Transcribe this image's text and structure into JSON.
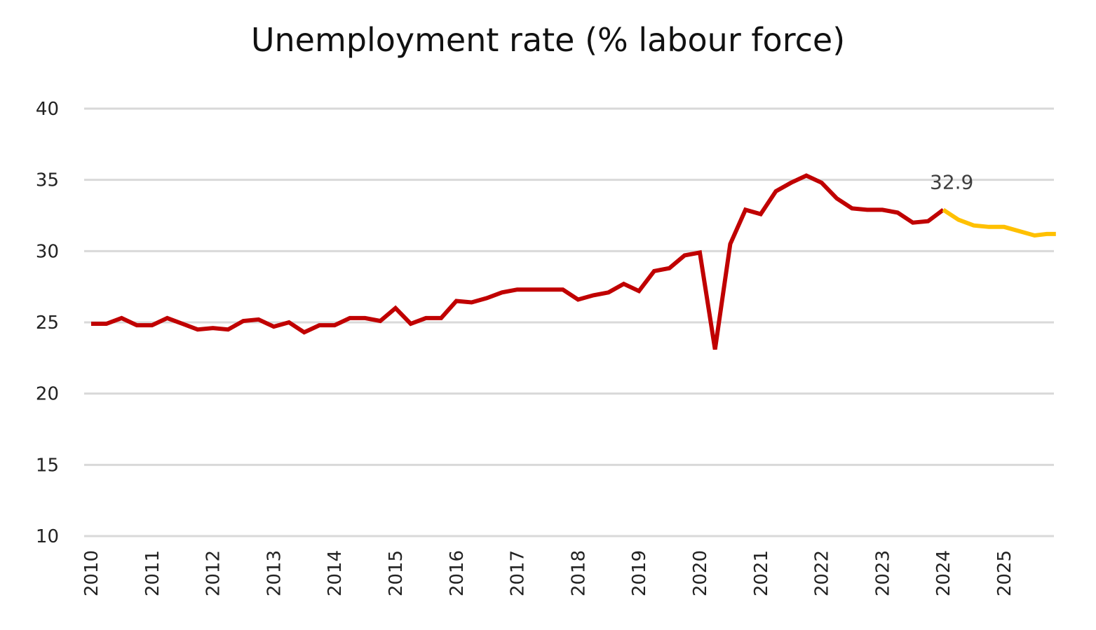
{
  "chart_data": {
    "type": "line",
    "title": "Unemployment rate (% labour force)",
    "xlabel": "",
    "ylabel": "",
    "ylim": [
      10,
      40
    ],
    "xlim": [
      2010,
      2025.85
    ],
    "yticks": [
      "10",
      "15",
      "20",
      "25",
      "30",
      "35",
      "40"
    ],
    "xticks": [
      "2010",
      "2011",
      "2012",
      "2013",
      "2014",
      "2015",
      "2016",
      "2017",
      "2018",
      "2019",
      "2020",
      "2021",
      "2022",
      "2023",
      "2024",
      "2025"
    ],
    "grid": true,
    "colors": {
      "actual": "#c00000",
      "forecast": "#ffc000",
      "grid": "#d9d9d9"
    },
    "series": [
      {
        "key": "actual",
        "points": [
          [
            2010.0,
            24.9
          ],
          [
            2010.25,
            24.9
          ],
          [
            2010.5,
            25.3
          ],
          [
            2010.75,
            24.8
          ],
          [
            2011.0,
            24.8
          ],
          [
            2011.25,
            25.3
          ],
          [
            2011.5,
            24.9
          ],
          [
            2011.75,
            24.5
          ],
          [
            2012.0,
            24.6
          ],
          [
            2012.25,
            24.5
          ],
          [
            2012.5,
            25.1
          ],
          [
            2012.75,
            25.2
          ],
          [
            2013.0,
            24.7
          ],
          [
            2013.25,
            25.0
          ],
          [
            2013.5,
            24.3
          ],
          [
            2013.75,
            24.8
          ],
          [
            2014.0,
            24.8
          ],
          [
            2014.25,
            25.3
          ],
          [
            2014.5,
            25.3
          ],
          [
            2014.75,
            25.1
          ],
          [
            2015.0,
            26.0
          ],
          [
            2015.25,
            24.9
          ],
          [
            2015.5,
            25.3
          ],
          [
            2015.75,
            25.3
          ],
          [
            2016.0,
            26.5
          ],
          [
            2016.25,
            26.4
          ],
          [
            2016.5,
            26.7
          ],
          [
            2016.75,
            27.1
          ],
          [
            2017.0,
            27.3
          ],
          [
            2017.25,
            27.3
          ],
          [
            2017.5,
            27.3
          ],
          [
            2017.75,
            27.3
          ],
          [
            2018.0,
            26.6
          ],
          [
            2018.25,
            26.9
          ],
          [
            2018.5,
            27.1
          ],
          [
            2018.75,
            27.7
          ],
          [
            2019.0,
            27.2
          ],
          [
            2019.25,
            28.6
          ],
          [
            2019.5,
            28.8
          ],
          [
            2019.75,
            29.7
          ],
          [
            2020.0,
            29.9
          ],
          [
            2020.25,
            23.1
          ],
          [
            2020.5,
            30.5
          ],
          [
            2020.75,
            32.9
          ],
          [
            2021.0,
            32.6
          ],
          [
            2021.25,
            34.2
          ],
          [
            2021.5,
            34.8
          ],
          [
            2021.75,
            35.3
          ],
          [
            2022.0,
            34.8
          ],
          [
            2022.25,
            33.7
          ],
          [
            2022.5,
            33.0
          ],
          [
            2022.75,
            32.9
          ],
          [
            2023.0,
            32.9
          ],
          [
            2023.25,
            32.7
          ],
          [
            2023.5,
            32.0
          ],
          [
            2023.75,
            32.1
          ],
          [
            2024.0,
            32.9
          ]
        ]
      },
      {
        "key": "forecast",
        "points": [
          [
            2024.0,
            32.9
          ],
          [
            2024.25,
            32.2
          ],
          [
            2024.5,
            31.8
          ],
          [
            2024.75,
            31.7
          ],
          [
            2025.0,
            31.7
          ],
          [
            2025.25,
            31.4
          ],
          [
            2025.5,
            31.1
          ],
          [
            2025.7,
            31.2
          ],
          [
            2025.85,
            31.2
          ]
        ]
      }
    ],
    "annotations": [
      {
        "text": "32.9",
        "x": 2024.0,
        "y": 32.9
      }
    ]
  }
}
